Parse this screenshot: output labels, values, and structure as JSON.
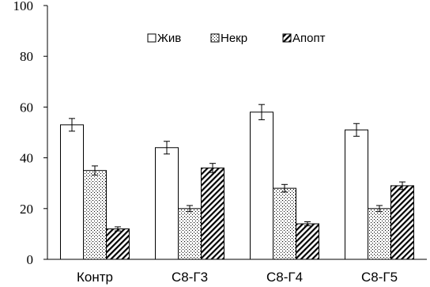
{
  "chart_data": {
    "type": "bar",
    "categories": [
      "Контр",
      "С8-Г3",
      "С8-Г4",
      "С8-Г5"
    ],
    "series": [
      {
        "name": "Жив",
        "fill": "white",
        "values": [
          53,
          44,
          58,
          51
        ],
        "errors": [
          2.5,
          2.5,
          3,
          2.5
        ]
      },
      {
        "name": "Некр",
        "fill": "dots",
        "values": [
          35,
          20,
          28,
          20
        ],
        "errors": [
          1.8,
          1.2,
          1.5,
          1.2
        ]
      },
      {
        "name": "Апопт",
        "fill": "hatch",
        "values": [
          12,
          36,
          14,
          29
        ],
        "errors": [
          0.8,
          1.8,
          0.8,
          1.5
        ]
      }
    ],
    "yticks": [
      0,
      20,
      40,
      60,
      80,
      100
    ],
    "ylim": [
      0,
      100
    ],
    "grid": false,
    "legend_position": "top-center"
  }
}
